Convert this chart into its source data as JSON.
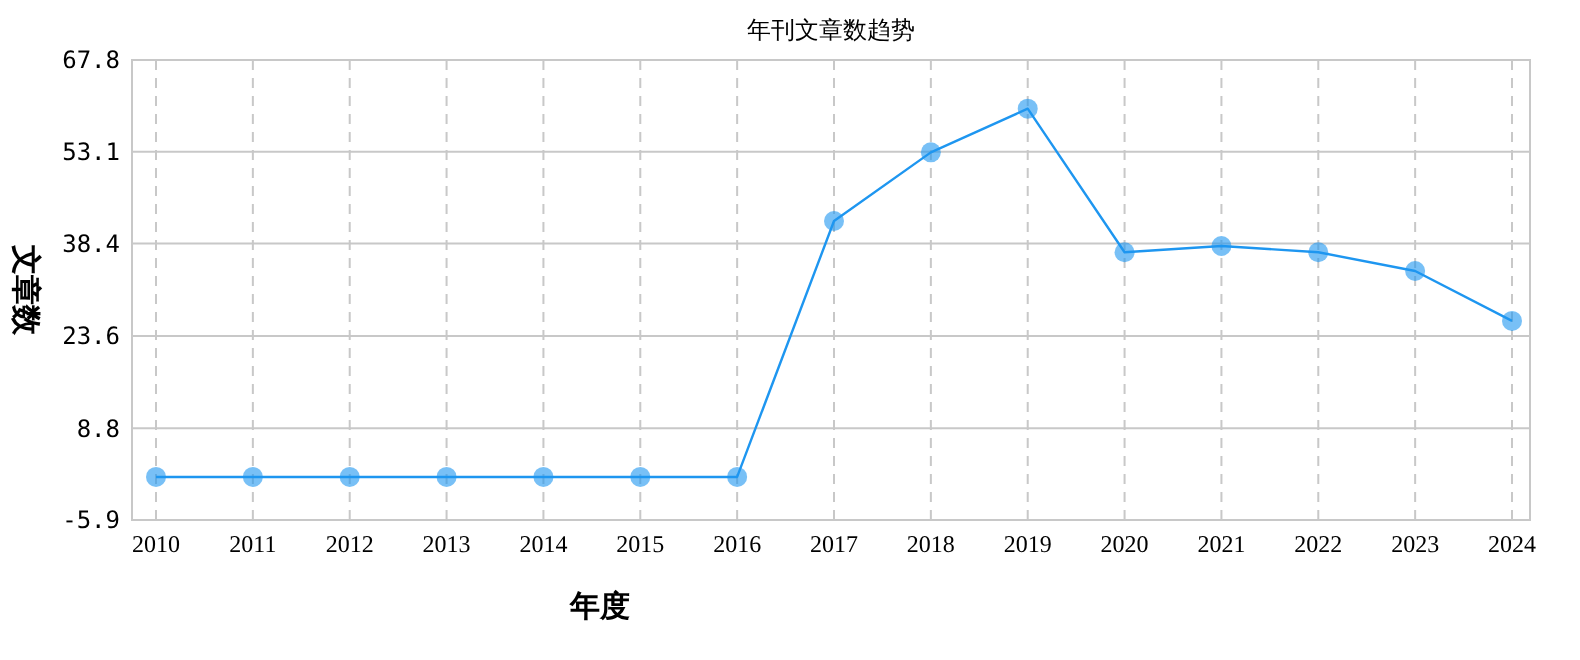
{
  "chart_data": {
    "type": "line",
    "title": "年刊文章数趋势",
    "xlabel": "年度",
    "ylabel": "文章数",
    "categories": [
      "2010",
      "2011",
      "2012",
      "2013",
      "2014",
      "2015",
      "2016",
      "2017",
      "2018",
      "2019",
      "2020",
      "2021",
      "2022",
      "2023",
      "2024"
    ],
    "series": [
      {
        "color": "#1e96f0",
        "values": [
          1,
          1,
          1,
          1,
          1,
          1,
          1,
          42,
          53,
          60,
          37,
          38,
          37,
          34,
          26
        ]
      }
    ],
    "ylim": [
      -5.9,
      67.8
    ],
    "yticks": [
      -5.9,
      8.8,
      23.6,
      38.4,
      53.1,
      67.8
    ],
    "grid": true,
    "marker": "circle",
    "line_style": "solid"
  }
}
